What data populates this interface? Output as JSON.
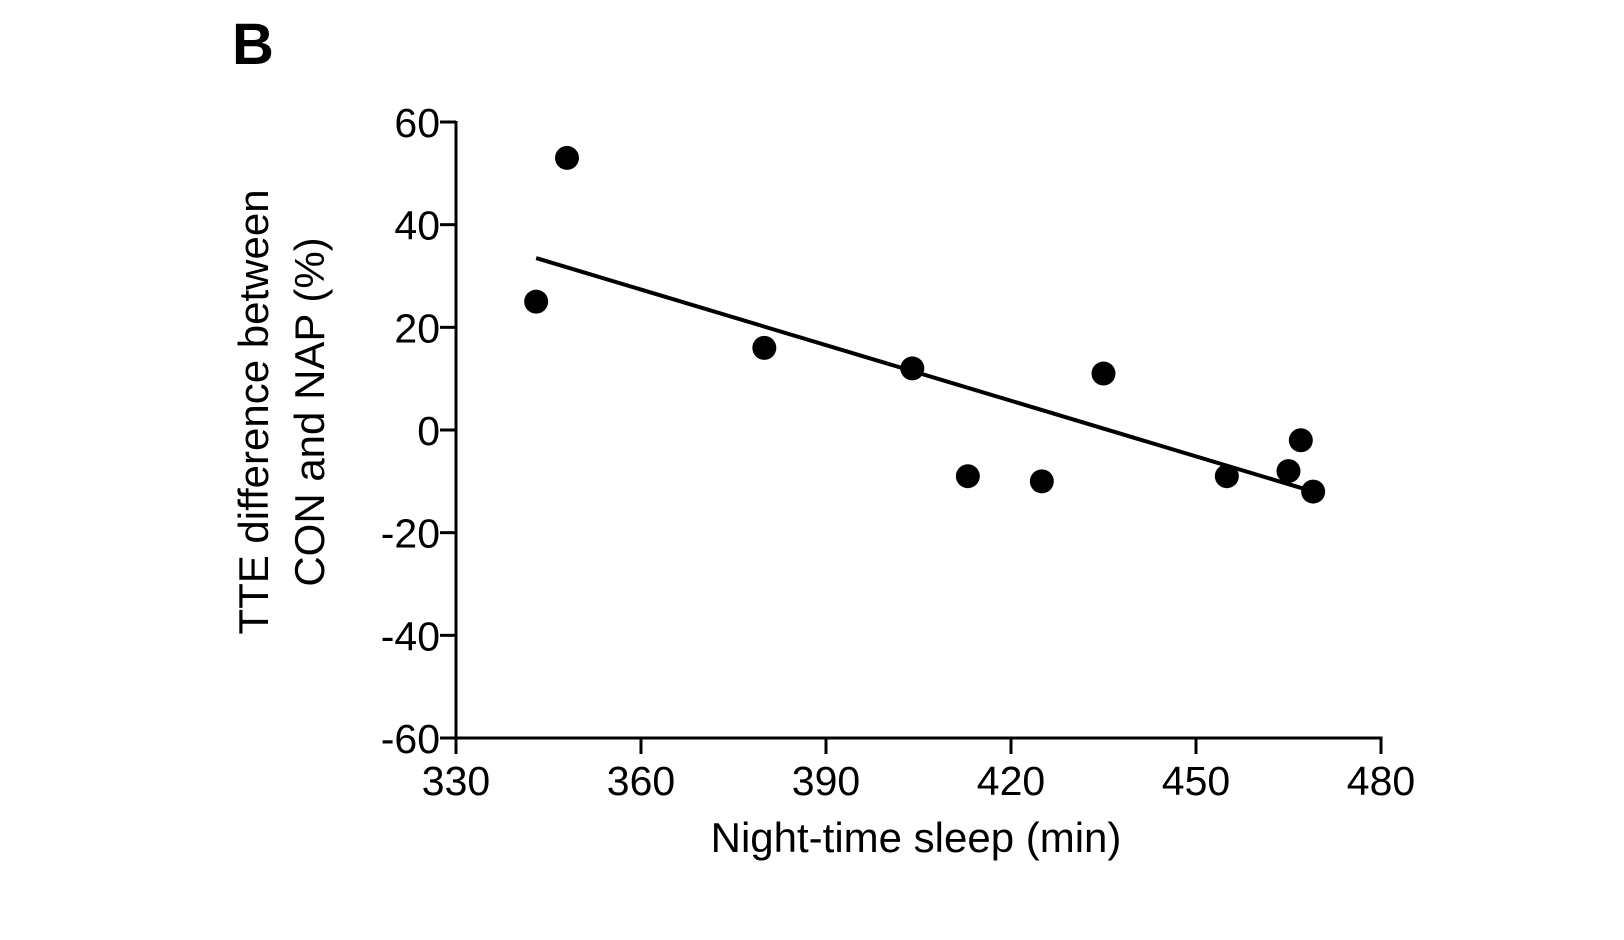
{
  "panel_label": "B",
  "chart_data": {
    "type": "scatter",
    "xlabel": "Night-time sleep (min)",
    "ylabel_lines": [
      "TTE difference between",
      "CON and NAP (%)"
    ],
    "xlim": [
      330,
      480
    ],
    "ylim": [
      -60,
      60
    ],
    "x_ticks": [
      330,
      360,
      390,
      420,
      450,
      480
    ],
    "y_ticks": [
      60,
      40,
      20,
      0,
      -20,
      -40,
      -60
    ],
    "x_tick_labels": [
      "330",
      "360",
      "390",
      "420",
      "450",
      "480"
    ],
    "y_tick_labels": [
      "60",
      "40",
      "20",
      "0",
      "-20",
      "-40",
      "-60"
    ],
    "grid": false,
    "points": [
      {
        "x": 343,
        "y": 25
      },
      {
        "x": 348,
        "y": 53
      },
      {
        "x": 380,
        "y": 16
      },
      {
        "x": 404,
        "y": 12
      },
      {
        "x": 413,
        "y": -9
      },
      {
        "x": 425,
        "y": -10
      },
      {
        "x": 435,
        "y": 11
      },
      {
        "x": 455,
        "y": -9
      },
      {
        "x": 465,
        "y": -8
      },
      {
        "x": 467,
        "y": -2
      },
      {
        "x": 469,
        "y": -12
      }
    ],
    "trendline": {
      "x": [
        343,
        469
      ],
      "y": [
        33.5,
        -12
      ]
    },
    "colors": {
      "points": "#000000",
      "line": "#000000",
      "axes": "#000000"
    }
  }
}
